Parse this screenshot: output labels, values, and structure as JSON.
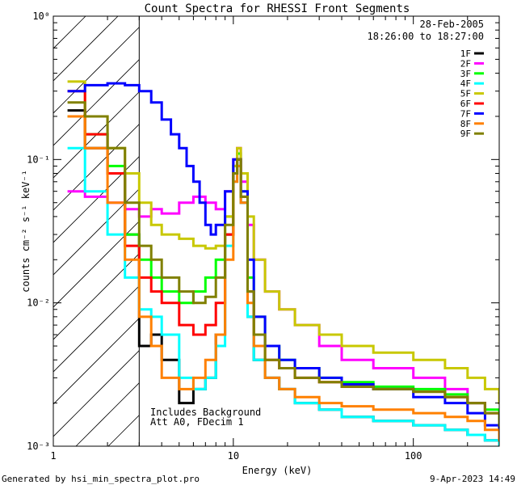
{
  "chart_data": {
    "type": "line",
    "title": "Count Spectra for RHESSI Front Segments",
    "xlabel": "Energy (keV)",
    "ylabel": "counts cm⁻² s⁻¹ keV⁻¹",
    "x_scale": "log",
    "y_scale": "log",
    "xlim": [
      1,
      300
    ],
    "ylim": [
      0.001,
      1
    ],
    "x_ticks": [
      {
        "value": 1,
        "label": "1"
      },
      {
        "value": 10,
        "label": "10"
      },
      {
        "value": 100,
        "label": "100"
      }
    ],
    "y_ticks": [
      {
        "value": 0.001,
        "label": "10⁻³"
      },
      {
        "value": 0.01,
        "label": "10⁻²"
      },
      {
        "value": 0.1,
        "label": "10⁻¹"
      },
      {
        "value": 1,
        "label": "10⁰"
      }
    ],
    "hatched_region": [
      1,
      3
    ],
    "legend_placement": "top-right",
    "date": "28-Feb-2005",
    "time_range": "18:26:00 to 18:27:00",
    "notes": [
      "Includes Background",
      "Att A0, FDecim 1"
    ],
    "series": [
      {
        "name": "1F",
        "color": "#000000",
        "x": [
          1.2,
          1.5,
          2,
          2.5,
          3,
          3.5,
          4,
          5,
          6,
          7,
          8,
          9,
          10,
          10.5,
          11,
          12,
          13,
          15,
          18,
          22,
          30,
          40,
          60,
          100,
          150,
          200,
          250,
          300
        ],
        "values": [
          0.22,
          0.12,
          0.08,
          0.03,
          0.005,
          0.006,
          0.004,
          0.002,
          0.0025,
          0.003,
          0.006,
          0.03,
          0.08,
          0.1,
          0.05,
          0.008,
          0.004,
          0.003,
          0.0025,
          0.002,
          0.0018,
          0.0016,
          0.0015,
          0.0014,
          0.0013,
          0.0012,
          0.0011,
          0.001
        ]
      },
      {
        "name": "2F",
        "color": "#ff00ff",
        "x": [
          1.2,
          1.5,
          2,
          2.5,
          3,
          3.5,
          4,
          5,
          6,
          7,
          8,
          9,
          10,
          10.5,
          11,
          12,
          13,
          15,
          18,
          22,
          30,
          40,
          60,
          100,
          150,
          200,
          250,
          300
        ],
        "values": [
          0.06,
          0.055,
          0.05,
          0.045,
          0.04,
          0.045,
          0.042,
          0.05,
          0.055,
          0.05,
          0.045,
          0.06,
          0.1,
          0.12,
          0.07,
          0.035,
          0.02,
          0.012,
          0.009,
          0.007,
          0.005,
          0.004,
          0.0035,
          0.003,
          0.0025,
          0.002,
          0.0017,
          0.0014
        ]
      },
      {
        "name": "3F",
        "color": "#00ff00",
        "x": [
          1.2,
          1.5,
          2,
          2.5,
          3,
          3.5,
          4,
          5,
          6,
          7,
          8,
          9,
          10,
          10.5,
          11,
          12,
          13,
          15,
          18,
          22,
          30,
          40,
          60,
          100,
          150,
          200,
          250,
          300
        ],
        "values": [
          0.2,
          0.15,
          0.09,
          0.03,
          0.02,
          0.015,
          0.012,
          0.01,
          0.012,
          0.015,
          0.02,
          0.04,
          0.09,
          0.11,
          0.06,
          0.015,
          0.008,
          0.005,
          0.004,
          0.0035,
          0.003,
          0.0028,
          0.0026,
          0.0025,
          0.0023,
          0.002,
          0.0018,
          0.0015
        ]
      },
      {
        "name": "4F",
        "color": "#00ffff",
        "x": [
          1.2,
          1.5,
          2,
          2.5,
          3,
          3.5,
          4,
          5,
          6,
          7,
          8,
          9,
          10,
          10.5,
          11,
          12,
          13,
          15,
          18,
          22,
          30,
          40,
          60,
          100,
          150,
          200,
          250,
          300
        ],
        "values": [
          0.12,
          0.06,
          0.03,
          0.015,
          0.009,
          0.008,
          0.006,
          0.003,
          0.0025,
          0.003,
          0.005,
          0.025,
          0.07,
          0.09,
          0.05,
          0.008,
          0.004,
          0.003,
          0.0025,
          0.002,
          0.0018,
          0.0016,
          0.0015,
          0.0014,
          0.0013,
          0.0012,
          0.0011,
          0.001
        ]
      },
      {
        "name": "5F",
        "color": "#c8c800",
        "x": [
          1.2,
          1.5,
          2,
          2.5,
          3,
          3.5,
          4,
          5,
          6,
          7,
          8,
          9,
          10,
          10.5,
          11,
          12,
          13,
          15,
          18,
          22,
          30,
          40,
          60,
          100,
          150,
          200,
          250,
          300
        ],
        "values": [
          0.35,
          0.2,
          0.12,
          0.08,
          0.05,
          0.035,
          0.03,
          0.028,
          0.025,
          0.024,
          0.025,
          0.04,
          0.09,
          0.12,
          0.08,
          0.04,
          0.02,
          0.012,
          0.009,
          0.007,
          0.006,
          0.005,
          0.0045,
          0.004,
          0.0035,
          0.003,
          0.0025,
          0.002
        ]
      },
      {
        "name": "6F",
        "color": "#ff0000",
        "x": [
          1.2,
          1.5,
          2,
          2.5,
          3,
          3.5,
          4,
          5,
          6,
          7,
          8,
          9,
          10,
          10.5,
          11,
          12,
          13,
          15,
          18,
          22,
          30,
          40,
          60,
          100,
          150,
          200,
          250,
          300
        ],
        "values": [
          0.3,
          0.15,
          0.08,
          0.025,
          0.015,
          0.012,
          0.01,
          0.007,
          0.006,
          0.007,
          0.01,
          0.03,
          0.08,
          0.1,
          0.055,
          0.012,
          0.006,
          0.004,
          0.0035,
          0.003,
          0.0028,
          0.0026,
          0.0025,
          0.0024,
          0.0022,
          0.002,
          0.0017,
          0.0014
        ]
      },
      {
        "name": "7F",
        "color": "#0000ff",
        "x": [
          1.2,
          1.5,
          2,
          2.5,
          3,
          3.5,
          4,
          4.5,
          5,
          5.5,
          6,
          6.5,
          7,
          7.5,
          8,
          9,
          10,
          11,
          12,
          13,
          15,
          18,
          22,
          30,
          40,
          60,
          100,
          150,
          200,
          250,
          300
        ],
        "values": [
          0.3,
          0.33,
          0.34,
          0.33,
          0.3,
          0.25,
          0.19,
          0.15,
          0.12,
          0.09,
          0.07,
          0.05,
          0.035,
          0.03,
          0.035,
          0.06,
          0.1,
          0.06,
          0.02,
          0.008,
          0.005,
          0.004,
          0.0035,
          0.003,
          0.0027,
          0.0025,
          0.0022,
          0.002,
          0.0017,
          0.0014,
          0.0012
        ]
      },
      {
        "name": "8F",
        "color": "#ff8000",
        "x": [
          1.2,
          1.5,
          2,
          2.5,
          3,
          3.5,
          4,
          5,
          6,
          7,
          8,
          9,
          10,
          10.5,
          11,
          12,
          13,
          15,
          18,
          22,
          30,
          40,
          60,
          100,
          150,
          200,
          250,
          300
        ],
        "values": [
          0.2,
          0.12,
          0.05,
          0.02,
          0.008,
          0.005,
          0.003,
          0.0025,
          0.003,
          0.004,
          0.006,
          0.02,
          0.07,
          0.09,
          0.05,
          0.01,
          0.005,
          0.003,
          0.0025,
          0.0022,
          0.002,
          0.0019,
          0.0018,
          0.0017,
          0.0016,
          0.0015,
          0.0013,
          0.0011
        ]
      },
      {
        "name": "9F",
        "color": "#808000",
        "x": [
          1.2,
          1.5,
          2,
          2.5,
          3,
          3.5,
          4,
          5,
          6,
          7,
          8,
          9,
          10,
          10.5,
          11,
          12,
          13,
          15,
          18,
          22,
          30,
          40,
          60,
          100,
          150,
          200,
          250,
          300
        ],
        "values": [
          0.25,
          0.2,
          0.12,
          0.05,
          0.025,
          0.02,
          0.015,
          0.012,
          0.01,
          0.011,
          0.015,
          0.035,
          0.08,
          0.1,
          0.055,
          0.012,
          0.006,
          0.004,
          0.0035,
          0.003,
          0.0028,
          0.0026,
          0.0025,
          0.0024,
          0.0022,
          0.002,
          0.0017,
          0.0014
        ]
      }
    ]
  },
  "footer": {
    "generated_by": "Generated by hsi_min_spectra_plot.pro",
    "timestamp": "9-Apr-2023 14:49"
  }
}
